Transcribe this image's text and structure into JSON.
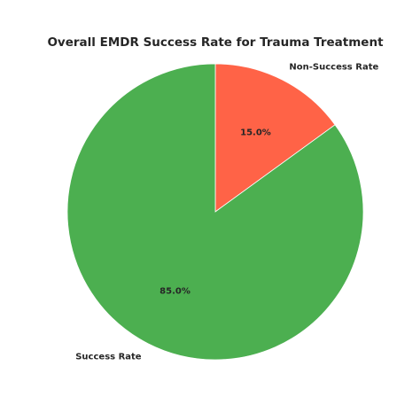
{
  "chart_data": {
    "type": "pie",
    "title": "Overall EMDR Success Rate for Trauma Treatment",
    "slices": [
      {
        "label": "Non-Success Rate",
        "value": 15.0,
        "pct_label": "15.0%",
        "color": "#FF6347"
      },
      {
        "label": "Success Rate",
        "value": 85.0,
        "pct_label": "85.0%",
        "color": "#4CAF50"
      }
    ],
    "start_angle": 90,
    "direction": "clockwise",
    "edge_color": "#FFFFFF"
  }
}
